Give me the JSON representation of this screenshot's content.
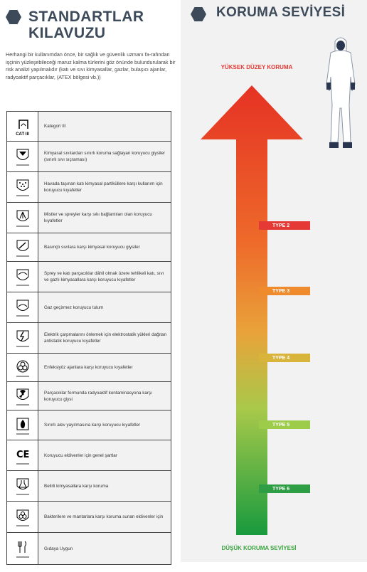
{
  "left": {
    "title_line1": "STANDARTLAR",
    "title_line2": "KILAVUZU",
    "intro": "Herhangi bir kullanımdan önce, bir sağlık ve güvenlik uzmanı fa-rafından işçinin yüzleşebileceği maruz kalma türlerini göz önünde bulundurularak bir risk analizi yapılmalıdır (katı ve sıvı kimyasallar, gazlar, bulaşıcı ajanlar, radyoaktif parçacıklar, (ATEX bölgesi vb.))",
    "rows": [
      {
        "icon": "cat-iii-icon",
        "badge": "CAT III",
        "text": "Kategori III"
      },
      {
        "icon": "type6-liquid-splash-icon",
        "badge": "",
        "text": "Kimyasal sıvılardan sınırlı koruma sağlayan koruyucu giysiler (sınırlı sıvı sıçraması)"
      },
      {
        "icon": "type5-particles-icon",
        "badge": "",
        "text": "Havada taşınan katı kimyasal partiküllere karşı kullanım için koruyucu kıyafetler"
      },
      {
        "icon": "type4-spray-icon",
        "badge": "",
        "text": "Mistler ve spreyler karşı sıkı bağlantıları olan koruyucu kıyafetler"
      },
      {
        "icon": "type3-liquid-jet-icon",
        "badge": "",
        "text": "Basınçlı sıvılara karşı kimyasal koruyucu giysiler"
      },
      {
        "icon": "type2-solid-liquid-gas-icon",
        "badge": "",
        "text": "Sprey ve katı parçacıklar dâhil olmak üzere tehlikeli katı, sıvı ve gazlı kimyasallara karşı koruyucu kıyafetler"
      },
      {
        "icon": "type1-gas-tight-icon",
        "badge": "",
        "text": "Gaz geçirmez koruyucu tulum"
      },
      {
        "icon": "electrostatic-icon",
        "badge": "",
        "text": "Elektrik çarpmalarını önlemek için elektrostatik yükleri dağıtan antistatik koruyucu kıyafetler"
      },
      {
        "icon": "biohazard-icon",
        "badge": "",
        "text": "Enfeksiyöz ajanlara karşı koruyucu kıyafetler"
      },
      {
        "icon": "radioactive-icon",
        "badge": "",
        "text": "Parçacıklar formunda radyoaktif kontaminasyona karşı koruyucu giysi"
      },
      {
        "icon": "flame-icon",
        "badge": "",
        "text": "Sınırlı alev yayılmasına karşı koruyucu kıyafetler"
      },
      {
        "icon": "ce-mark-icon",
        "badge": "",
        "text": "Koruyucu eldivenler için genel şartlar"
      },
      {
        "icon": "chemical-flask-icon",
        "badge": "",
        "text": "Belirli kimyasallara karşı koruma"
      },
      {
        "icon": "biohazard-gloves-icon",
        "badge": "",
        "text": "Bakterilere ve mantarlara karşı koruma sunan eldivenler için"
      },
      {
        "icon": "food-safe-icon",
        "badge": "",
        "text": "Gıdaya Uygun"
      }
    ]
  },
  "right": {
    "title": "KORUMA SEVİYESİ",
    "high_label": "YÜKSEK DÜZEY KORUMA",
    "low_label": "DÜŞÜK KORUMA SEVİYESİ",
    "types": [
      {
        "label": "TYPE 2",
        "color": "#e53935"
      },
      {
        "label": "TYPE 3",
        "color": "#ef8b2c"
      },
      {
        "label": "TYPE 4",
        "color": "#d9b43a"
      },
      {
        "label": "TYPE 5",
        "color": "#9ccc4a"
      },
      {
        "label": "TYPE 6",
        "color": "#2e9e44"
      }
    ],
    "figure_icon": "protective-coverall-suit-icon"
  },
  "colors": {
    "heading": "#3d4a5a",
    "high": "#e53935",
    "low": "#3aa53f",
    "panel_bg": "#f2f2f2"
  }
}
